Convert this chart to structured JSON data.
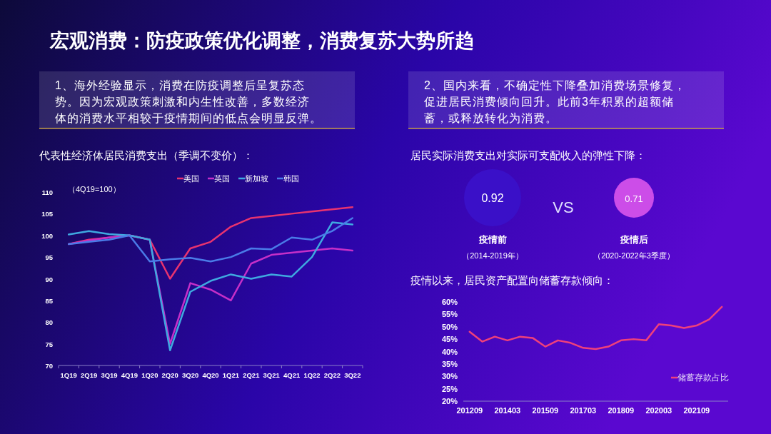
{
  "chart_data": [
    {
      "type": "other",
      "title": "宏观消费：防疫政策优化调整，消费复苏大势所趋",
      "annotations": [
        "1、海外经验显示，消费在防疫调整后呈复苏态势。因为宏观政策刺激和内生性改善，多数经济体的消费水平相较于疫情期间的低点会明显反弹。",
        "2、国内来看，不确定性下降叠加消费场景修复，促进居民消费倾向回升。此前3年积累的超额储蓄，或释放转化为消费。"
      ]
    },
    {
      "type": "line",
      "title": "代表性经济体居民消费支出（季调不变价）：",
      "annotations": [
        "（4Q19=100）"
      ],
      "categories": [
        "1Q19",
        "2Q19",
        "3Q19",
        "4Q19",
        "1Q20",
        "2Q20",
        "3Q20",
        "4Q20",
        "1Q21",
        "2Q21",
        "3Q21",
        "4Q21",
        "1Q22",
        "2Q22",
        "3Q22"
      ],
      "ylim": [
        70,
        110
      ],
      "yticks": [
        70,
        75,
        80,
        85,
        90,
        95,
        100,
        105,
        110
      ],
      "grid": false,
      "legend": "top",
      "series": [
        {
          "name": "美国",
          "color": "#e8336f",
          "values": [
            98,
            99,
            99.5,
            100,
            99,
            90,
            97,
            98.5,
            102,
            104,
            104.5,
            105,
            105.5,
            106,
            106.5
          ]
        },
        {
          "name": "英国",
          "color": "#c62fc8",
          "values": [
            98,
            98.8,
            99.5,
            100,
            99,
            75,
            89,
            87.5,
            85,
            93.5,
            95.5,
            96,
            96.5,
            97,
            96.5
          ]
        },
        {
          "name": "新加坡",
          "color": "#3fa9e0",
          "values": [
            100.2,
            101,
            100.3,
            100,
            99,
            73.5,
            87,
            89.5,
            91,
            90,
            91,
            90.5,
            95,
            103,
            102.5
          ]
        },
        {
          "name": "韩国",
          "color": "#4a7be8",
          "values": [
            98,
            98.5,
            99,
            100,
            94,
            94.5,
            94.8,
            94,
            95,
            97,
            96.8,
            99.5,
            99,
            101,
            104
          ]
        }
      ]
    },
    {
      "type": "other",
      "title": "居民实际消费支出对实际可支配收入的弹性下降：",
      "categories": [
        "疫情前",
        "疫情后"
      ],
      "values": [
        0.92,
        0.71
      ],
      "data_labels": true,
      "colors": [
        "#3a10c8",
        "#cc4de8"
      ],
      "annotations": [
        "VS",
        "（2014-2019年）",
        "（2020-2022年3季度）"
      ]
    },
    {
      "type": "line",
      "title": "疫情以来，居民资产配置向储蓄存款倾向：",
      "categories": [
        "201209",
        null,
        null,
        "201403",
        null,
        null,
        "201509",
        null,
        null,
        "201703",
        null,
        null,
        "201809",
        null,
        null,
        "202003",
        null,
        null,
        "202109",
        null,
        null
      ],
      "ylim": [
        20,
        60
      ],
      "yticks": [
        {
          "value": 20,
          "label": "20%"
        },
        {
          "value": 25,
          "label": "25%"
        },
        {
          "value": 30,
          "label": "30%"
        },
        {
          "value": 35,
          "label": "35%"
        },
        {
          "value": 40,
          "label": "40%"
        },
        {
          "value": 45,
          "label": "45%"
        },
        {
          "value": 50,
          "label": "50%"
        },
        {
          "value": 55,
          "label": "55%"
        },
        {
          "value": 60,
          "label": "60%"
        }
      ],
      "grid": false,
      "legend": "bottom right",
      "series": [
        {
          "name": "储蓄存款占比",
          "color": "#f0407a",
          "values": [
            48,
            44,
            46,
            44.5,
            46,
            45.5,
            42,
            44.5,
            43.5,
            41.5,
            41,
            42,
            44.5,
            45,
            44.5,
            51,
            50.5,
            49.5,
            50.5,
            53,
            58
          ]
        }
      ]
    }
  ]
}
